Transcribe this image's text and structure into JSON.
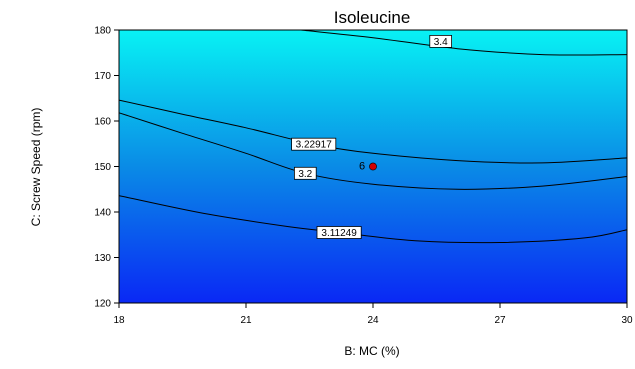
{
  "chart_data": {
    "type": "contour",
    "title": "Isoleucine",
    "xlabel": "B: MC (%)",
    "ylabel": "C: Screw Speed (rpm)",
    "xlim": [
      18,
      30
    ],
    "ylim": [
      120,
      180
    ],
    "x_ticks": [
      "18",
      "21",
      "24",
      "27",
      "30"
    ],
    "y_ticks": [
      "120",
      "130",
      "140",
      "150",
      "160",
      "170",
      "180"
    ],
    "colors": {
      "low": "#0a28f5",
      "mid": "#0a8be6",
      "high": "#08f2f4",
      "line": "#000000",
      "point": "#d20000"
    },
    "contours": [
      {
        "label": "3.4",
        "label_at": [
          25.6,
          177.5
        ],
        "points": [
          [
            22.3,
            180
          ],
          [
            24,
            178.3
          ],
          [
            26,
            175.9
          ],
          [
            28,
            174.6
          ],
          [
            30,
            174.6
          ]
        ]
      },
      {
        "label": "3.22917",
        "label_at": [
          22.6,
          154.9
        ],
        "points": [
          [
            18,
            164.6
          ],
          [
            19.5,
            161.5
          ],
          [
            21,
            158.5
          ],
          [
            22.6,
            154.9
          ],
          [
            24,
            152.9
          ],
          [
            26,
            151.3
          ],
          [
            28,
            150.8
          ],
          [
            30,
            151.9
          ]
        ]
      },
      {
        "label": "3.2",
        "label_at": [
          22.4,
          148.5
        ],
        "points": [
          [
            18,
            161.8
          ],
          [
            19.5,
            157.3
          ],
          [
            21,
            152.9
          ],
          [
            22.4,
            148.5
          ],
          [
            24,
            146.1
          ],
          [
            26,
            145.0
          ],
          [
            28,
            145.7
          ],
          [
            30,
            147.8
          ]
        ]
      },
      {
        "label": "3.11249",
        "label_at": [
          23.2,
          135.5
        ],
        "points": [
          [
            18,
            143.6
          ],
          [
            20,
            139.7
          ],
          [
            22,
            136.8
          ],
          [
            23.2,
            135.5
          ],
          [
            25,
            133.7
          ],
          [
            27,
            133.3
          ],
          [
            29,
            134.3
          ],
          [
            30,
            136.1
          ]
        ]
      }
    ],
    "design_points": [
      {
        "x": 24,
        "y": 150,
        "label": "6"
      }
    ]
  }
}
